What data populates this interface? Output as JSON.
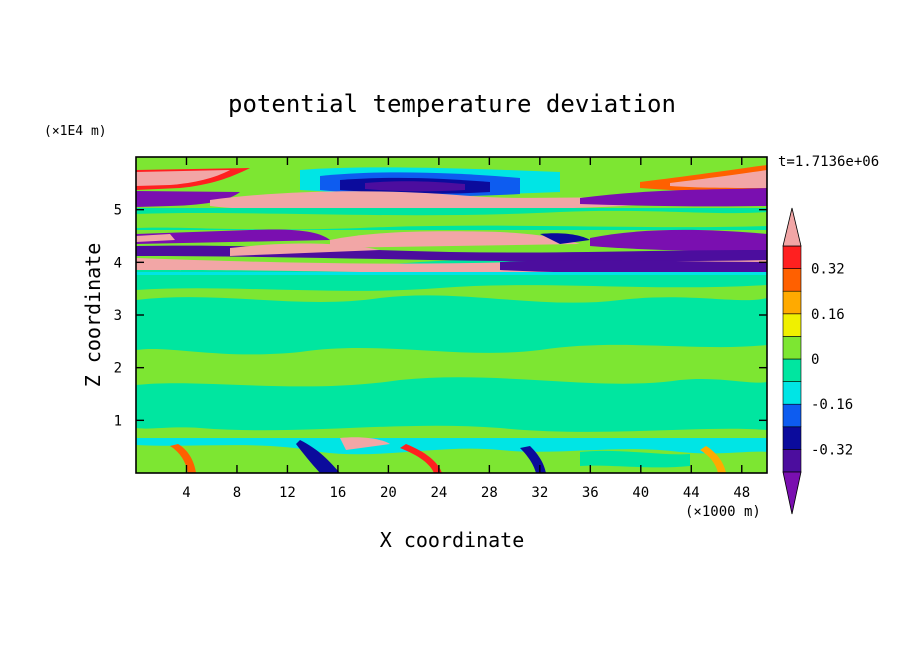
{
  "chart_data": {
    "type": "heatmap",
    "title": "potential temperature deviation",
    "xlabel": "X coordinate",
    "ylabel": "Z coordinate",
    "x_unit": "(×1000 m)",
    "y_unit": "(×1E4 m)",
    "time_label": "t=1.7136e+06",
    "xlim": [
      0,
      50
    ],
    "ylim": [
      0,
      6
    ],
    "x_ticks": [
      4,
      8,
      12,
      16,
      20,
      24,
      28,
      32,
      36,
      40,
      44,
      48
    ],
    "y_ticks": [
      1,
      2,
      3,
      4,
      5
    ],
    "colorbar": {
      "levels": [
        -0.4,
        -0.32,
        -0.24,
        -0.16,
        -0.08,
        0,
        0.08,
        0.16,
        0.24,
        0.32,
        0.4
      ],
      "labels": [
        "0.32",
        "0.16",
        "0",
        "-0.16",
        "-0.32"
      ],
      "label_values": [
        0.32,
        0.16,
        0,
        -0.16,
        -0.32
      ],
      "under_color": "#7a0fb0",
      "over_color": "#f2a6a6",
      "colors": [
        "#4c0d9e",
        "#0b0b9c",
        "#0d5cf0",
        "#00e5e5",
        "#00e6a0",
        "#7de632",
        "#f0f000",
        "#ffaa00",
        "#ff6000",
        "#ff2020"
      ]
    },
    "bands": [
      {
        "z_range": [
          0,
          0.65
        ],
        "pattern": "turbulent mixed",
        "values": [
          -0.4,
          0.4
        ]
      },
      {
        "z_range": [
          0.65,
          3.7
        ],
        "pattern": "near zero",
        "values": [
          0,
          0.08
        ]
      },
      {
        "z_range": [
          3.7,
          4.6
        ],
        "pattern": "alternating layers",
        "values": [
          -0.4,
          0.4
        ]
      },
      {
        "z_range": [
          4.6,
          5.0
        ],
        "pattern": "near zero",
        "values": [
          0,
          0.08
        ]
      },
      {
        "z_range": [
          5.0,
          6.0
        ],
        "pattern": "alternating layers",
        "values": [
          -0.4,
          0.4
        ]
      }
    ]
  }
}
